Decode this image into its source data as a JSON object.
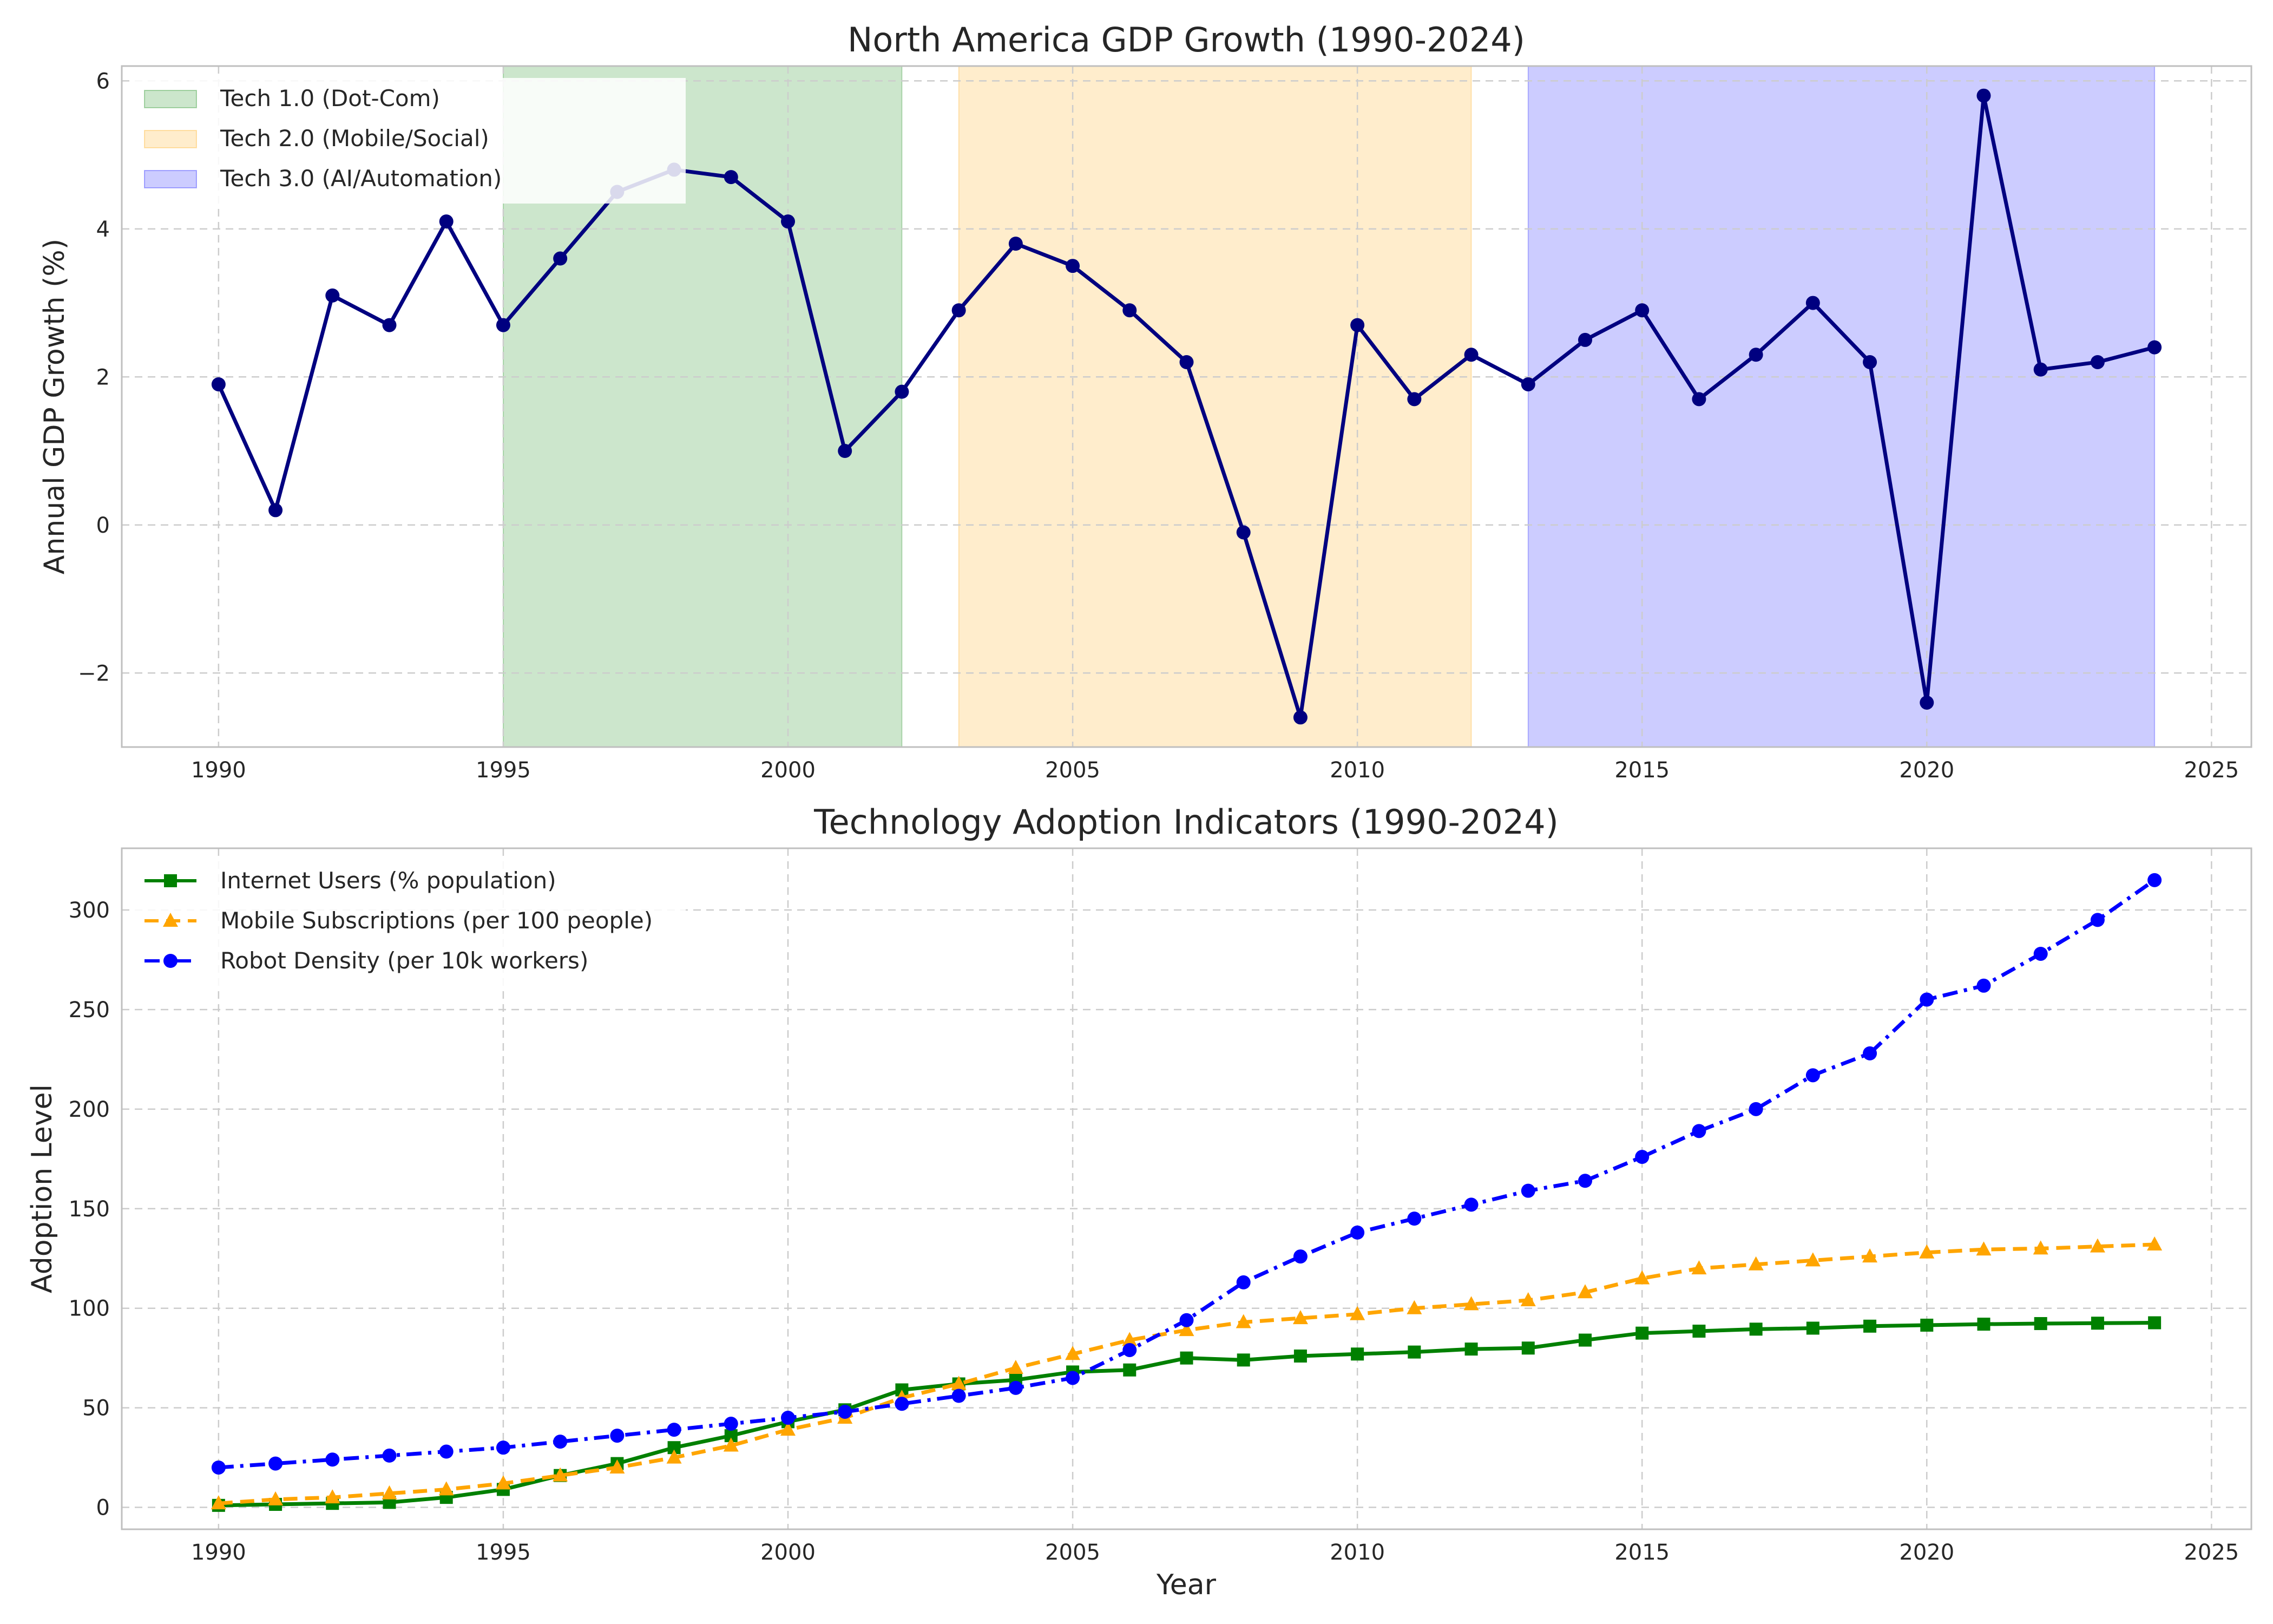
{
  "chart_data": [
    {
      "type": "line",
      "title": "North America GDP Growth (1990-2024)",
      "xlabel": "",
      "ylabel": "Annual GDP Growth (%)",
      "xlim": [
        1988.3,
        2025.7
      ],
      "ylim": [
        -3.0,
        6.2
      ],
      "xticks": [
        1990,
        1995,
        2000,
        2005,
        2010,
        2015,
        2020,
        2025
      ],
      "yticks": [
        -2,
        0,
        2,
        4,
        6
      ],
      "ytick_labels": [
        "−2",
        "0",
        "2",
        "4",
        "6"
      ],
      "grid": true,
      "legend_position": "upper-left",
      "x": [
        1990,
        1991,
        1992,
        1993,
        1994,
        1995,
        1996,
        1997,
        1998,
        1999,
        2000,
        2001,
        2002,
        2003,
        2004,
        2005,
        2006,
        2007,
        2008,
        2009,
        2010,
        2011,
        2012,
        2013,
        2014,
        2015,
        2016,
        2017,
        2018,
        2019,
        2020,
        2021,
        2022,
        2023,
        2024
      ],
      "series": [
        {
          "values": [
            1.9,
            0.2,
            3.1,
            2.7,
            4.1,
            2.7,
            3.6,
            4.5,
            4.8,
            4.7,
            4.1,
            1.0,
            1.8,
            2.9,
            3.8,
            3.5,
            2.9,
            2.2,
            -0.1,
            -2.6,
            2.7,
            1.7,
            2.3,
            1.9,
            2.5,
            2.9,
            1.7,
            2.3,
            3.0,
            2.2,
            -2.4,
            5.8,
            2.1,
            2.2,
            2.4
          ],
          "color": "#000080",
          "marker": "circle",
          "linestyle": "solid"
        }
      ],
      "bands": [
        {
          "name": "Tech 1.0 (Dot-Com)",
          "start": 1995,
          "end": 2002,
          "color": "#008000",
          "alpha": 0.2
        },
        {
          "name": "Tech 2.0 (Mobile/Social)",
          "start": 2003,
          "end": 2012,
          "color": "#ffa500",
          "alpha": 0.2
        },
        {
          "name": "Tech 3.0 (AI/Automation)",
          "start": 2013,
          "end": 2024,
          "color": "#0000ff",
          "alpha": 0.2
        }
      ]
    },
    {
      "type": "line",
      "title": "Technology Adoption Indicators (1990-2024)",
      "xlabel": "Year",
      "ylabel": "Adoption Level",
      "xlim": [
        1988.3,
        2025.7
      ],
      "ylim": [
        -11,
        331
      ],
      "xticks": [
        1990,
        1995,
        2000,
        2005,
        2010,
        2015,
        2020,
        2025
      ],
      "yticks": [
        0,
        50,
        100,
        150,
        200,
        250,
        300
      ],
      "grid": true,
      "legend_position": "upper-left",
      "x": [
        1990,
        1991,
        1992,
        1993,
        1994,
        1995,
        1996,
        1997,
        1998,
        1999,
        2000,
        2001,
        2002,
        2003,
        2004,
        2005,
        2006,
        2007,
        2008,
        2009,
        2010,
        2011,
        2012,
        2013,
        2014,
        2015,
        2016,
        2017,
        2018,
        2019,
        2020,
        2021,
        2022,
        2023,
        2024
      ],
      "series": [
        {
          "name": "Internet Users (% population)",
          "color": "#008000",
          "marker": "square",
          "linestyle": "solid",
          "values": [
            1,
            1.5,
            2,
            2.5,
            5,
            9,
            16,
            22,
            30,
            36,
            43,
            49,
            59,
            62,
            64,
            68,
            69,
            75,
            74,
            76,
            77,
            78,
            79.5,
            80,
            84,
            87.5,
            88.5,
            89.5,
            90,
            91,
            91.5,
            92,
            92.3,
            92.5,
            92.7
          ]
        },
        {
          "name": "Mobile Subscriptions (per 100 people)",
          "color": "#ffa500",
          "marker": "triangle",
          "linestyle": "dashed",
          "values": [
            2,
            4,
            5,
            7,
            9,
            12,
            16,
            20,
            25,
            31,
            39,
            45,
            55,
            62,
            70,
            77,
            84,
            89,
            93,
            95,
            97,
            100,
            102,
            104,
            108,
            115,
            120,
            122,
            124,
            126,
            128,
            129.5,
            130,
            131,
            132
          ]
        },
        {
          "name": "Robot Density (per 10k workers)",
          "color": "#0000ff",
          "marker": "circle",
          "linestyle": "dashdot",
          "values": [
            20,
            22,
            24,
            26,
            28,
            30,
            33,
            36,
            39,
            42,
            45,
            48,
            52,
            56,
            60,
            65,
            79,
            94,
            113,
            126,
            138,
            145,
            152,
            159,
            164,
            176,
            189,
            200,
            217,
            228,
            255,
            262,
            278,
            295,
            315
          ]
        }
      ]
    }
  ]
}
